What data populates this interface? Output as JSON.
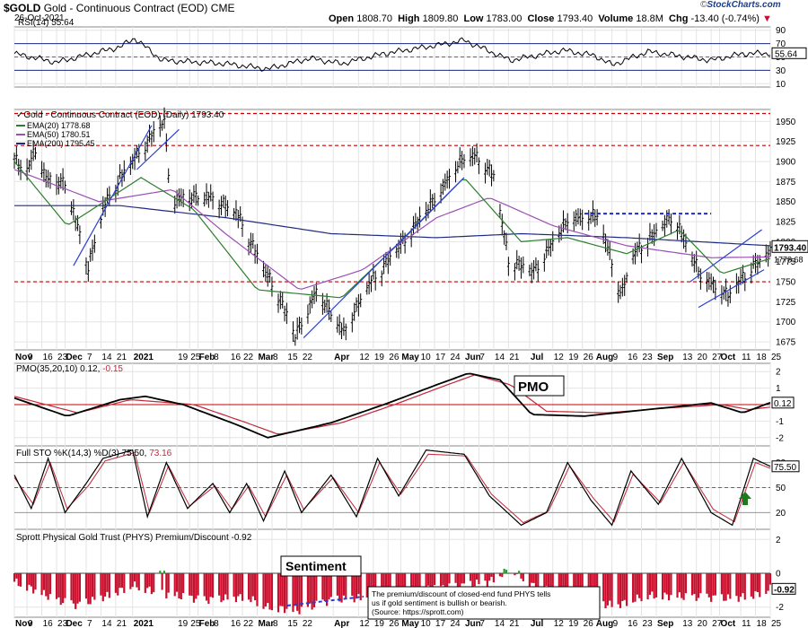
{
  "header": {
    "symbol": "$GOLD",
    "name": "Gold - Continuous Contract (EOD)",
    "exchange": "CME",
    "date": "26-Oct-2021",
    "open_label": "Open",
    "open": "1808.70",
    "high_label": "High",
    "high": "1809.80",
    "low_label": "Low",
    "low": "1783.00",
    "close_label": "Close",
    "close": "1793.40",
    "volume_label": "Volume",
    "volume": "18.8M",
    "chg_label": "Chg",
    "chg": "-13.40 (-0.74%)",
    "chg_arrow": "▼",
    "logo_prefix": "©",
    "logo": "StockCharts.com"
  },
  "colors": {
    "price_up": "#000000",
    "ema20": "#2d7d2d",
    "ema50": "#9b4fb5",
    "ema200": "#1f2a80",
    "support": "#cc0000",
    "trend": "#2a3fd0",
    "pmo": "#000000",
    "pmo_signal": "#c0283a",
    "premium": "#c8102e",
    "discount_pos": "#2a9a2a",
    "arrow": "#1d7a1d"
  },
  "panels": {
    "rsi": {
      "label": "RSI(14) 55.64",
      "ticks": [
        "90",
        "70",
        "50",
        "30",
        "10"
      ],
      "tick_values": [
        90,
        70,
        50,
        30,
        10
      ],
      "last_tag": "55.64"
    },
    "price": {
      "label": "Gold - Continuous Contract (EOD) (Daily) 1793.40",
      "ema20_label": "EMA(20) 1778.68",
      "ema50_label": "EMA(50) 1780.51",
      "ema200_label": "EMA(200) 1795.45",
      "ticks": [
        "1950",
        "1925",
        "1900",
        "1875",
        "1850",
        "1825",
        "1800",
        "1775",
        "1750",
        "1725",
        "1700",
        "1675"
      ],
      "tick_values": [
        1950,
        1925,
        1900,
        1875,
        1850,
        1825,
        1800,
        1775,
        1750,
        1725,
        1700,
        1675
      ],
      "close_tag": "1793.40",
      "ema_tag": "1778.68"
    },
    "pmo": {
      "label_prefix": "PMO(35,20,10) 0.12,",
      "label_value": "-0.15",
      "callout": "PMO",
      "ticks": [
        "2",
        "1",
        "0",
        "-1",
        "-2"
      ],
      "tick_values": [
        2,
        1,
        0,
        -1,
        -2
      ],
      "last_tag": "0.12"
    },
    "sto": {
      "label_prefix": "Full STO %K(14,3) %D(3) 75.50,",
      "label_value": "73.16",
      "ticks": [
        "80",
        "50",
        "20"
      ],
      "tick_values": [
        80,
        50,
        20
      ],
      "last_tag": "75.50"
    },
    "phys": {
      "label": "Sprott Physical Gold Trust (PHYS) Premium/Discount -0.92",
      "callout": "Sentiment",
      "note": "The premium/discount of closed-end fund PHYS tells us if gold sentiment is bullish or bearish. (Source: https://sprott.com)",
      "ticks": [
        "2",
        "0",
        "-2"
      ],
      "tick_values": [
        2,
        0,
        -2
      ],
      "last_tag": "-0.92"
    }
  },
  "xaxis": {
    "labels": [
      "Nov",
      "9",
      "16",
      "23",
      "Dec",
      "7",
      "14",
      "21",
      "2021",
      "19",
      "25",
      "Feb",
      "8",
      "16",
      "22",
      "Mar",
      "8",
      "15",
      "22",
      "Apr",
      "12",
      "19",
      "26",
      "May",
      "10",
      "17",
      "24",
      "Jun",
      "7",
      "14",
      "21",
      "Jul",
      "12",
      "19",
      "26",
      "Aug",
      "9",
      "16",
      "23",
      "Sep",
      "13",
      "20",
      "27",
      "Oct",
      "11",
      "18",
      "25"
    ],
    "label_days": [
      0,
      6,
      13,
      20,
      24,
      34,
      41,
      48,
      56,
      77,
      83,
      87,
      94,
      102,
      108,
      115,
      122,
      129,
      136,
      151,
      163,
      170,
      177,
      183,
      192,
      199,
      206,
      213,
      220,
      227,
      234,
      244,
      255,
      262,
      269,
      275,
      283,
      290,
      297,
      304,
      316,
      323,
      330,
      334,
      344,
      351,
      358
    ],
    "bold": [
      "Nov",
      "Dec",
      "2021",
      "Feb",
      "Mar",
      "Apr",
      "May",
      "Jun",
      "Jul",
      "Aug",
      "Sep",
      "Oct"
    ]
  },
  "chart_data": {
    "type": "line",
    "title": "Gold - Continuous Contract (EOD) (Daily) 1793.40",
    "ylim": [
      1665,
      1965
    ],
    "x_range": [
      "2020-10-26",
      "2021-10-26"
    ],
    "price_keypoints": [
      {
        "d": "2020-10-26",
        "v": 1905
      },
      {
        "d": "2020-10-30",
        "v": 1880
      },
      {
        "d": "2020-11-06",
        "v": 1915
      },
      {
        "d": "2020-11-10",
        "v": 1875
      },
      {
        "d": "2020-11-20",
        "v": 1870
      },
      {
        "d": "2020-11-23",
        "v": 1835
      },
      {
        "d": "2020-11-30",
        "v": 1765
      },
      {
        "d": "2020-12-07",
        "v": 1840
      },
      {
        "d": "2020-12-17",
        "v": 1885
      },
      {
        "d": "2021-01-05",
        "v": 1950
      },
      {
        "d": "2021-01-08",
        "v": 1850
      },
      {
        "d": "2021-01-25",
        "v": 1855
      },
      {
        "d": "2021-02-08",
        "v": 1835
      },
      {
        "d": "2021-02-19",
        "v": 1775
      },
      {
        "d": "2021-03-01",
        "v": 1725
      },
      {
        "d": "2021-03-08",
        "v": 1680
      },
      {
        "d": "2021-03-18",
        "v": 1735
      },
      {
        "d": "2021-03-31",
        "v": 1685
      },
      {
        "d": "2021-04-12",
        "v": 1745
      },
      {
        "d": "2021-04-23",
        "v": 1780
      },
      {
        "d": "2021-05-10",
        "v": 1840
      },
      {
        "d": "2021-05-26",
        "v": 1900
      },
      {
        "d": "2021-06-01",
        "v": 1905
      },
      {
        "d": "2021-06-10",
        "v": 1880
      },
      {
        "d": "2021-06-17",
        "v": 1775
      },
      {
        "d": "2021-06-29",
        "v": 1760
      },
      {
        "d": "2021-07-15",
        "v": 1825
      },
      {
        "d": "2021-07-29",
        "v": 1830
      },
      {
        "d": "2021-08-06",
        "v": 1765
      },
      {
        "d": "2021-08-09",
        "v": 1730
      },
      {
        "d": "2021-08-16",
        "v": 1785
      },
      {
        "d": "2021-09-03",
        "v": 1830
      },
      {
        "d": "2021-09-10",
        "v": 1790
      },
      {
        "d": "2021-09-16",
        "v": 1755
      },
      {
        "d": "2021-09-29",
        "v": 1730
      },
      {
        "d": "2021-10-08",
        "v": 1760
      },
      {
        "d": "2021-10-19",
        "v": 1785
      },
      {
        "d": "2021-10-22",
        "v": 1810
      },
      {
        "d": "2021-10-26",
        "v": 1793.4
      }
    ],
    "ema20": [
      [
        0,
        1900
      ],
      [
        25,
        1820
      ],
      [
        60,
        1880
      ],
      [
        85,
        1840
      ],
      [
        115,
        1740
      ],
      [
        155,
        1730
      ],
      [
        183,
        1800
      ],
      [
        213,
        1880
      ],
      [
        240,
        1800
      ],
      [
        262,
        1805
      ],
      [
        290,
        1785
      ],
      [
        315,
        1815
      ],
      [
        335,
        1760
      ],
      [
        358,
        1779
      ]
    ],
    "ema50": [
      [
        0,
        1890
      ],
      [
        40,
        1850
      ],
      [
        75,
        1865
      ],
      [
        100,
        1810
      ],
      [
        135,
        1740
      ],
      [
        165,
        1765
      ],
      [
        200,
        1830
      ],
      [
        225,
        1855
      ],
      [
        255,
        1820
      ],
      [
        290,
        1795
      ],
      [
        330,
        1780
      ],
      [
        358,
        1781
      ]
    ],
    "ema200": [
      [
        0,
        1845
      ],
      [
        50,
        1845
      ],
      [
        100,
        1830
      ],
      [
        150,
        1810
      ],
      [
        200,
        1805
      ],
      [
        240,
        1810
      ],
      [
        290,
        1805
      ],
      [
        358,
        1795
      ]
    ],
    "support_levels": [
      1960,
      1920,
      1750
    ],
    "resistance_dashed": 1835,
    "rsi": [
      [
        0,
        55
      ],
      [
        20,
        42
      ],
      [
        50,
        65
      ],
      [
        57,
        78
      ],
      [
        70,
        45
      ],
      [
        100,
        40
      ],
      [
        120,
        32
      ],
      [
        140,
        48
      ],
      [
        155,
        40
      ],
      [
        175,
        55
      ],
      [
        205,
        70
      ],
      [
        213,
        75
      ],
      [
        235,
        45
      ],
      [
        260,
        60
      ],
      [
        275,
        52
      ],
      [
        283,
        38
      ],
      [
        300,
        58
      ],
      [
        330,
        45
      ],
      [
        345,
        55
      ],
      [
        358,
        55.64
      ]
    ],
    "pmo": [
      [
        0,
        0.4
      ],
      [
        25,
        -0.7
      ],
      [
        50,
        0.3
      ],
      [
        62,
        0.5
      ],
      [
        80,
        0.0
      ],
      [
        105,
        -1.2
      ],
      [
        120,
        -2.0
      ],
      [
        150,
        -1.1
      ],
      [
        175,
        0.0
      ],
      [
        200,
        1.2
      ],
      [
        215,
        1.9
      ],
      [
        230,
        1.5
      ],
      [
        245,
        -0.6
      ],
      [
        270,
        -0.7
      ],
      [
        300,
        -0.3
      ],
      [
        330,
        0.1
      ],
      [
        345,
        -0.5
      ],
      [
        358,
        0.12
      ]
    ],
    "pmo_signal": [
      [
        0,
        0.5
      ],
      [
        30,
        -0.5
      ],
      [
        55,
        0.3
      ],
      [
        85,
        0.0
      ],
      [
        110,
        -1.1
      ],
      [
        125,
        -1.8
      ],
      [
        155,
        -1.1
      ],
      [
        180,
        0.0
      ],
      [
        205,
        1.2
      ],
      [
        218,
        1.8
      ],
      [
        235,
        1.2
      ],
      [
        252,
        -0.4
      ],
      [
        280,
        -0.5
      ],
      [
        310,
        -0.2
      ],
      [
        335,
        0.0
      ],
      [
        348,
        -0.3
      ],
      [
        358,
        -0.15
      ]
    ],
    "sto_k": [
      [
        0,
        65
      ],
      [
        8,
        25
      ],
      [
        16,
        85
      ],
      [
        24,
        20
      ],
      [
        34,
        55
      ],
      [
        42,
        85
      ],
      [
        56,
        95
      ],
      [
        63,
        15
      ],
      [
        72,
        80
      ],
      [
        82,
        25
      ],
      [
        94,
        55
      ],
      [
        102,
        20
      ],
      [
        110,
        55
      ],
      [
        118,
        10
      ],
      [
        128,
        70
      ],
      [
        136,
        20
      ],
      [
        150,
        65
      ],
      [
        162,
        15
      ],
      [
        172,
        85
      ],
      [
        182,
        40
      ],
      [
        195,
        95
      ],
      [
        213,
        90
      ],
      [
        225,
        40
      ],
      [
        240,
        5
      ],
      [
        252,
        20
      ],
      [
        262,
        80
      ],
      [
        273,
        35
      ],
      [
        283,
        5
      ],
      [
        292,
        70
      ],
      [
        305,
        30
      ],
      [
        316,
        85
      ],
      [
        330,
        20
      ],
      [
        340,
        5
      ],
      [
        350,
        85
      ],
      [
        358,
        75.5
      ]
    ],
    "sto_d": [
      [
        0,
        62
      ],
      [
        9,
        30
      ],
      [
        17,
        80
      ],
      [
        25,
        25
      ],
      [
        35,
        52
      ],
      [
        43,
        82
      ],
      [
        57,
        92
      ],
      [
        64,
        20
      ],
      [
        73,
        76
      ],
      [
        83,
        28
      ],
      [
        95,
        52
      ],
      [
        103,
        24
      ],
      [
        111,
        52
      ],
      [
        119,
        15
      ],
      [
        129,
        65
      ],
      [
        137,
        24
      ],
      [
        151,
        62
      ],
      [
        163,
        20
      ],
      [
        173,
        80
      ],
      [
        183,
        42
      ],
      [
        196,
        90
      ],
      [
        214,
        88
      ],
      [
        226,
        42
      ],
      [
        241,
        8
      ],
      [
        253,
        22
      ],
      [
        263,
        76
      ],
      [
        274,
        38
      ],
      [
        284,
        9
      ],
      [
        293,
        66
      ],
      [
        306,
        32
      ],
      [
        317,
        80
      ],
      [
        331,
        24
      ],
      [
        341,
        9
      ],
      [
        351,
        80
      ],
      [
        358,
        73.16
      ]
    ],
    "phys_premium": [
      [
        0,
        -0.5
      ],
      [
        10,
        -1.0
      ],
      [
        20,
        -1.6
      ],
      [
        30,
        -1.9
      ],
      [
        45,
        -1.3
      ],
      [
        56,
        -0.7
      ],
      [
        70,
        -1.2
      ],
      [
        90,
        -1.6
      ],
      [
        110,
        -1.4
      ],
      [
        120,
        -2.0
      ],
      [
        135,
        -2.2
      ],
      [
        150,
        -1.6
      ],
      [
        170,
        -1.4
      ],
      [
        190,
        -1.1
      ],
      [
        200,
        -0.9
      ],
      [
        210,
        -0.8
      ],
      [
        225,
        -0.5
      ],
      [
        235,
        0.3
      ],
      [
        245,
        -0.7
      ],
      [
        260,
        -1.3
      ],
      [
        275,
        -1.8
      ],
      [
        285,
        -1.9
      ],
      [
        300,
        -1.3
      ],
      [
        320,
        -1.4
      ],
      [
        340,
        -1.5
      ],
      [
        350,
        -1.3
      ],
      [
        358,
        -0.92
      ]
    ]
  }
}
